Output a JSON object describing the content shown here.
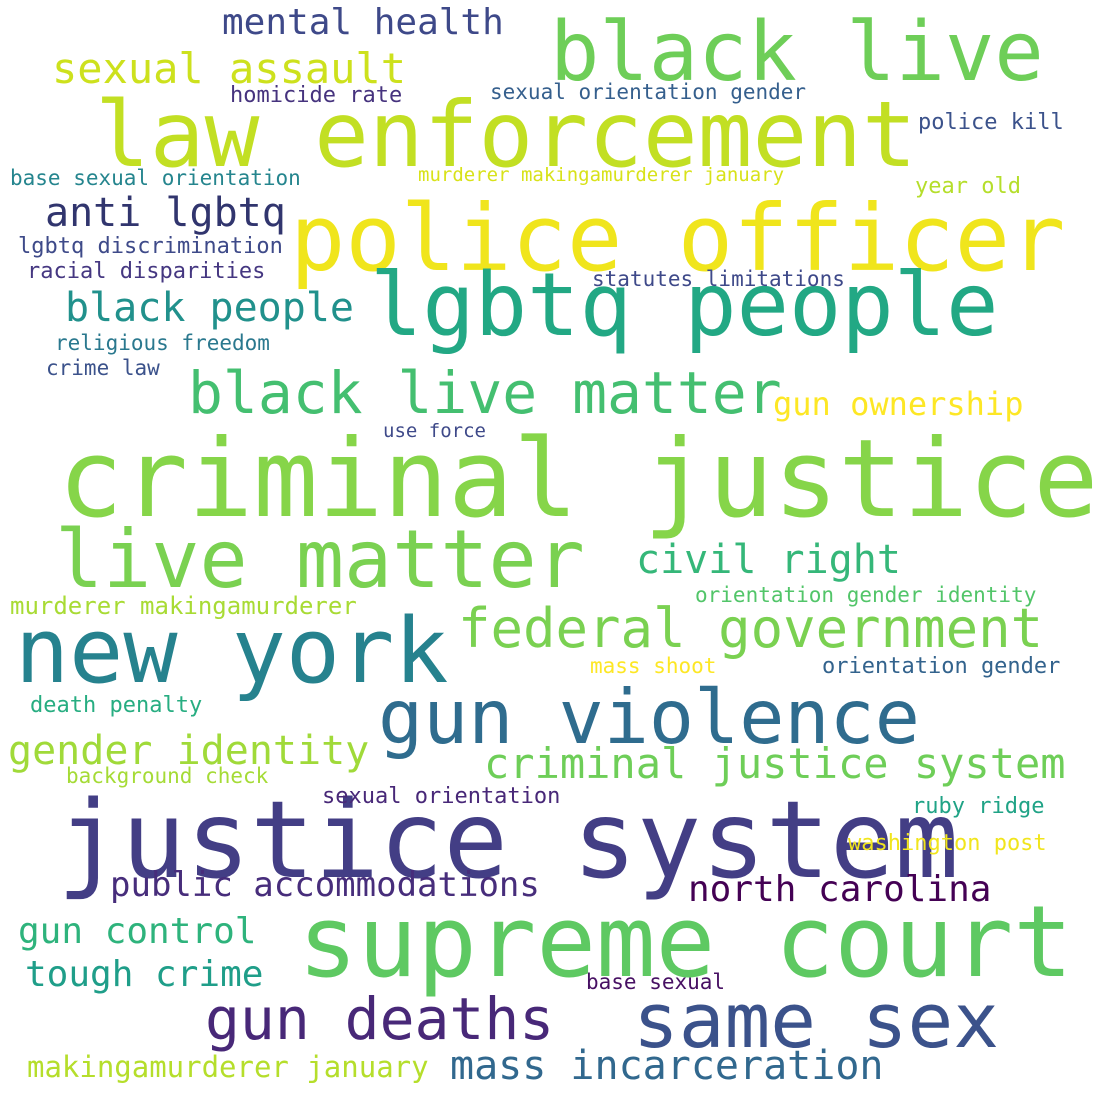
{
  "words": [
    {
      "text": "criminal justice",
      "color": "#86d549"
    },
    {
      "text": "police officer",
      "color": "#f0e51c"
    },
    {
      "text": "law enforcement",
      "color": "#c2df23"
    },
    {
      "text": "black live",
      "color": "#6ece58"
    },
    {
      "text": "lgbtq people",
      "color": "#22a884"
    },
    {
      "text": "justice system",
      "color": "#433e85"
    },
    {
      "text": "supreme court",
      "color": "#5ec962"
    },
    {
      "text": "new york",
      "color": "#26828e"
    },
    {
      "text": "gun violence",
      "color": "#2f6c8e"
    },
    {
      "text": "live matter",
      "color": "#7ad151"
    },
    {
      "text": "same sex",
      "color": "#3b528b"
    },
    {
      "text": "black live matter",
      "color": "#44bf70"
    },
    {
      "text": "federal government",
      "color": "#7ad151"
    },
    {
      "text": "gun deaths",
      "color": "#482878"
    },
    {
      "text": "criminal justice system",
      "color": "#6ece58"
    },
    {
      "text": "sexual assault",
      "color": "#cde11d"
    },
    {
      "text": "mental health",
      "color": "#3e4989"
    },
    {
      "text": "civil right",
      "color": "#35b779"
    },
    {
      "text": "black people",
      "color": "#21918c"
    },
    {
      "text": "gender identity",
      "color": "#a0da39"
    },
    {
      "text": "anti lgbtq",
      "color": "#31356e"
    },
    {
      "text": "gun ownership",
      "color": "#fde725"
    },
    {
      "text": "public accommodations",
      "color": "#472d7b"
    },
    {
      "text": "north carolina",
      "color": "#440154"
    },
    {
      "text": "mass incarceration",
      "color": "#31688e"
    },
    {
      "text": "gun control",
      "color": "#2eb37c"
    },
    {
      "text": "tough crime",
      "color": "#1f9e89"
    },
    {
      "text": "makingamurderer january",
      "color": "#b5de2b"
    },
    {
      "text": "murderer makingamurderer",
      "color": "#a8db34"
    },
    {
      "text": "orientation gender identity",
      "color": "#52c569"
    },
    {
      "text": "homicide rate",
      "color": "#46337e"
    },
    {
      "text": "sexual orientation gender",
      "color": "#355f8d"
    },
    {
      "text": "police kill",
      "color": "#3b528b"
    },
    {
      "text": "base sexual orientation",
      "color": "#25858e"
    },
    {
      "text": "murderer makingamurderer january",
      "color": "#d8e219"
    },
    {
      "text": "year old",
      "color": "#b5de2b"
    },
    {
      "text": "lgbtq discrimination",
      "color": "#3e4a89"
    },
    {
      "text": "racial disparities",
      "color": "#453781"
    },
    {
      "text": "statutes limitations",
      "color": "#3e4989"
    },
    {
      "text": "religious freedom",
      "color": "#2a788e"
    },
    {
      "text": "crime law",
      "color": "#3b528b"
    },
    {
      "text": "use force",
      "color": "#3e4989"
    },
    {
      "text": "mass shoot",
      "color": "#fde725"
    },
    {
      "text": "orientation gender",
      "color": "#33638d"
    },
    {
      "text": "death penalty",
      "color": "#27ad81"
    },
    {
      "text": "background check",
      "color": "#a5db36"
    },
    {
      "text": "sexual orientation",
      "color": "#482878"
    },
    {
      "text": "ruby ridge",
      "color": "#20a386"
    },
    {
      "text": "washington post",
      "color": "#f1e51d"
    },
    {
      "text": "base sexual",
      "color": "#471063"
    }
  ]
}
